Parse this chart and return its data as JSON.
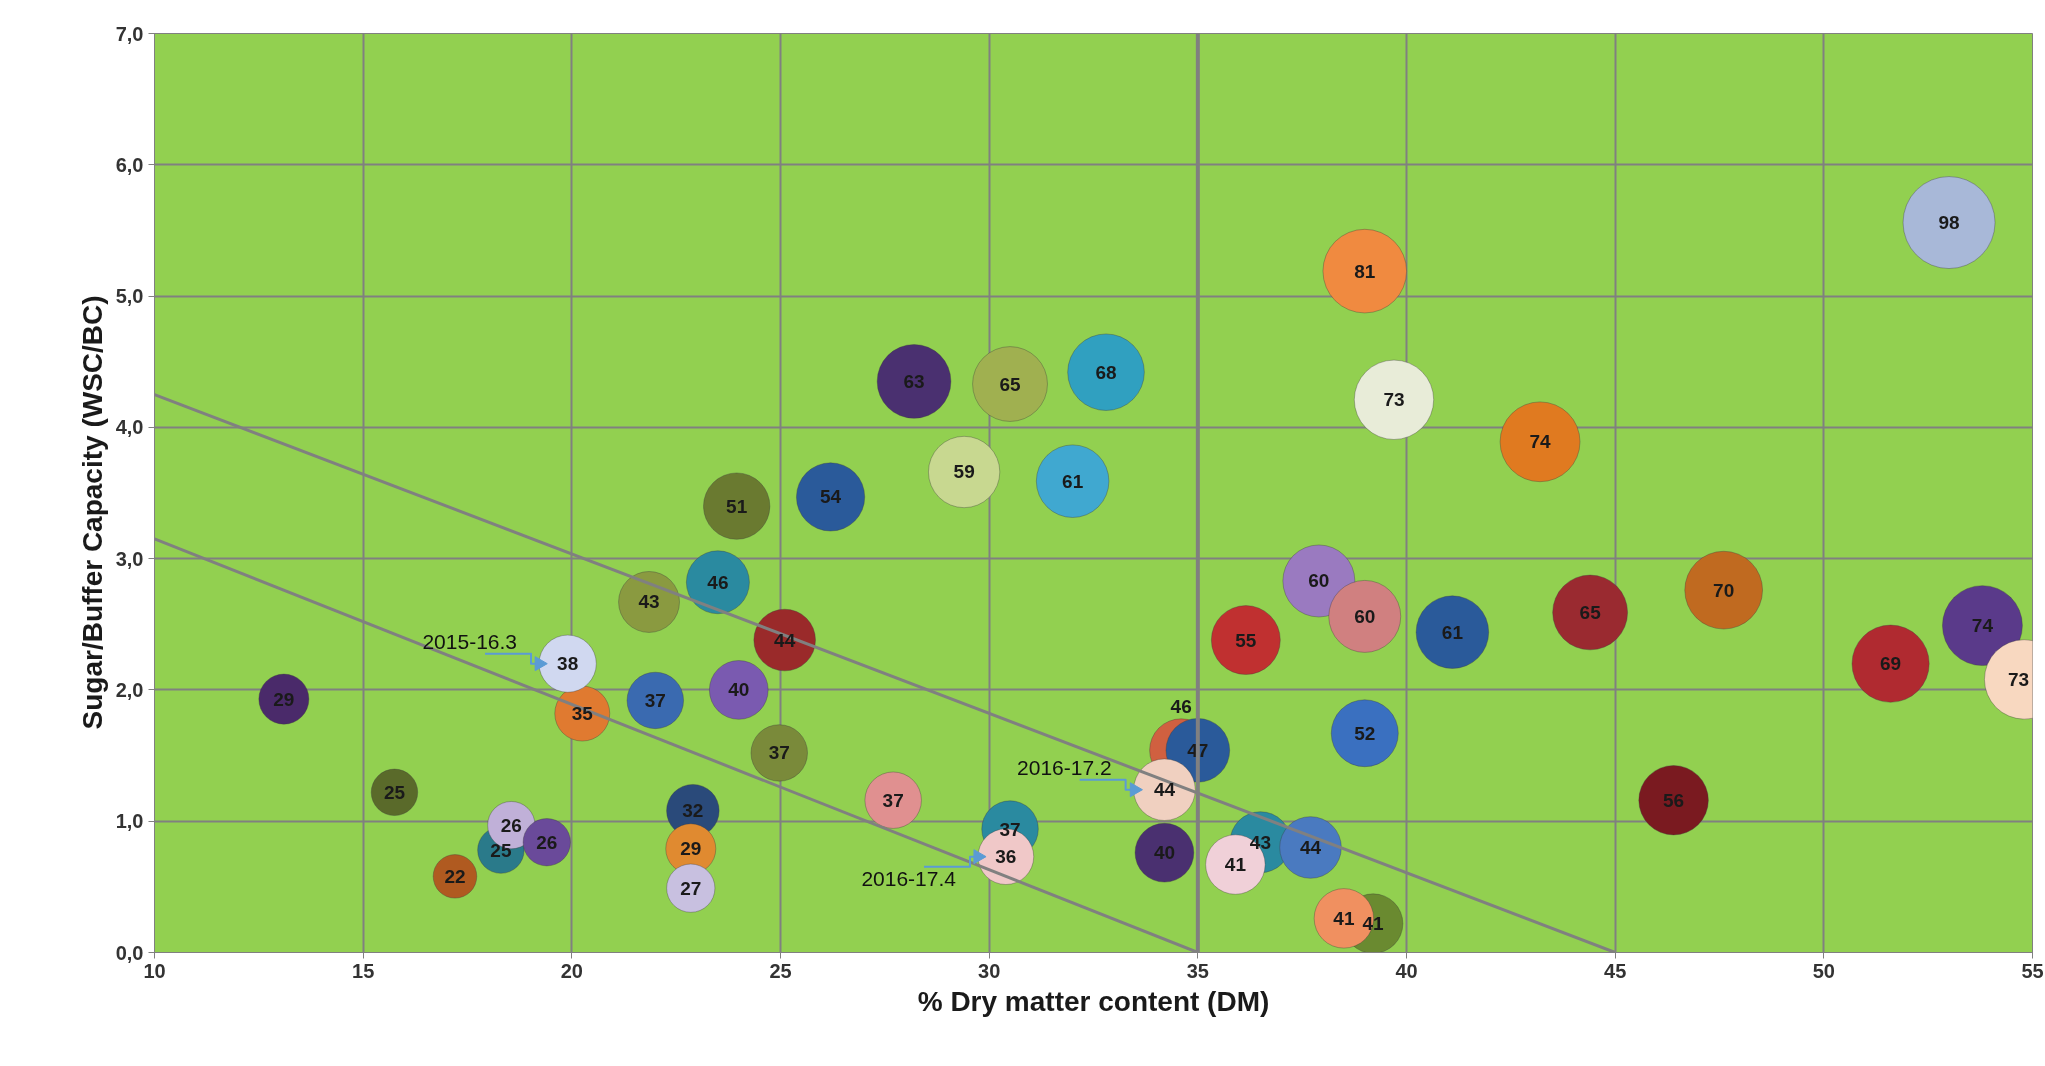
{
  "chart_data": {
    "type": "bubble",
    "xlabel": "% Dry matter content (DM)",
    "ylabel": "Sugar/Buffer Capacity      (WSC/BC)",
    "xlim": [
      10,
      55
    ],
    "xticks": [
      10,
      15,
      20,
      25,
      30,
      35,
      40,
      45,
      50,
      55
    ],
    "ylim": [
      0,
      7
    ],
    "yticks": [
      {
        "value": 0,
        "label": "0,0"
      },
      {
        "value": 1,
        "label": "1,0"
      },
      {
        "value": 2,
        "label": "2,0"
      },
      {
        "value": 3,
        "label": "3,0"
      },
      {
        "value": 4,
        "label": "4,0"
      },
      {
        "value": 5,
        "label": "5,0"
      },
      {
        "value": 6,
        "label": "6,0"
      },
      {
        "value": 7,
        "label": "7,0"
      }
    ],
    "grid": true,
    "ref_lines": [
      {
        "axis": "x",
        "value": 35,
        "label": null,
        "color": "#808080"
      }
    ],
    "annotations": [
      {
        "text": "2015-16.3",
        "x": 19.9,
        "y": 2.2
      },
      {
        "text": "2016-17.2",
        "x": 34.2,
        "y": 1.24
      },
      {
        "text": "2016-17.4",
        "x": 30.4,
        "y": 0.73
      }
    ],
    "series": [
      {
        "value_labels": [
          "29",
          "25",
          "25",
          "26",
          "26",
          "22",
          "35",
          "38",
          "43",
          "37",
          "32",
          "29",
          "27",
          "51",
          "46",
          "40",
          "44",
          "37",
          "54",
          "63",
          "65",
          "68",
          "59",
          "61",
          "37",
          "37",
          "36",
          "46",
          "47",
          "44",
          "40",
          "43",
          "41",
          "44",
          "41",
          "41",
          "55",
          "60",
          "60",
          "61",
          "52",
          "81",
          "73",
          "74",
          "65",
          "70",
          "56",
          "98",
          "69",
          "74",
          "73"
        ],
        "x": [
          13.1,
          15.75,
          18.3,
          18.55,
          19.4,
          17.2,
          20.25,
          19.9,
          21.85,
          22.0,
          22.9,
          22.85,
          22.85,
          23.95,
          23.5,
          24.0,
          25.1,
          24.97,
          26.2,
          28.2,
          30.5,
          32.8,
          29.4,
          32.0,
          27.7,
          30.5,
          30.4,
          34.6,
          35.0,
          34.2,
          34.2,
          36.5,
          35.9,
          37.7,
          39.2,
          38.5,
          36.15,
          37.9,
          39.0,
          41.1,
          39.0,
          39.0,
          39.7,
          43.2,
          44.4,
          47.6,
          46.4,
          53.0,
          51.6,
          53.8,
          54.8
        ],
        "values": [
          1.93,
          1.22,
          0.78,
          0.97,
          0.84,
          0.58,
          1.82,
          2.2,
          2.67,
          1.92,
          1.08,
          0.79,
          0.49,
          3.4,
          2.82,
          2.0,
          2.38,
          1.52,
          3.47,
          4.35,
          4.33,
          4.42,
          3.66,
          3.59,
          1.16,
          0.94,
          0.73,
          1.54,
          1.54,
          1.24,
          0.76,
          0.84,
          0.67,
          0.8,
          0.22,
          0.26,
          2.38,
          2.83,
          2.56,
          2.44,
          1.67,
          5.19,
          4.21,
          3.89,
          2.59,
          2.76,
          1.16,
          5.56,
          2.2,
          2.49,
          2.08
        ],
        "sizes": [
          29,
          25,
          25,
          26,
          26,
          22,
          35,
          38,
          43,
          37,
          32,
          29,
          27,
          51,
          46,
          40,
          44,
          37,
          54,
          63,
          65,
          68,
          59,
          61,
          37,
          37,
          36,
          46,
          47,
          44,
          40,
          43,
          41,
          44,
          41,
          41,
          55,
          60,
          60,
          61,
          52,
          81,
          73,
          74,
          65,
          70,
          56,
          98,
          69,
          74,
          73
        ],
        "colors": [
          "#4a2a6a",
          "#5a6a2a",
          "#2a7a8a",
          "#c0b0d8",
          "#6a4a9a",
          "#b05a20",
          "#e07a30",
          "#d0d8f0",
          "#8a9a40",
          "#3a6ab0",
          "#2a4a7a",
          "#e08a30",
          "#c8c0e0",
          "#6a7a30",
          "#2a8aa0",
          "#7a5ab0",
          "#9a2a2a",
          "#7a8a3a",
          "#2a5a9a",
          "#4a3070",
          "#a0b050",
          "#30a0c0",
          "#c8d890",
          "#40a8d0",
          "#e09090",
          "#2a8aa0",
          "#f0c8c8",
          "#d06040",
          "#2a5a9a",
          "#f0d0c0",
          "#4a3070",
          "#2a8aa0",
          "#f0d0d8",
          "#4a7ac0",
          "#6a8a30",
          "#f09060",
          "#c03030",
          "#9a7ac0",
          "#d08080",
          "#2a5a9a",
          "#3a70c0",
          "#f08a40",
          "#e8ecd8",
          "#e07a20",
          "#9a2a30",
          "#c06a20",
          "#7a1a20",
          "#a8b8d8",
          "#b02a30",
          "#5a3a8a",
          "#f8d8c0"
        ]
      },
      {
        "type": "line",
        "x": [
          10,
          45
        ],
        "values": [
          4.25,
          0
        ],
        "color": "#808080"
      },
      {
        "type": "line",
        "x": [
          10,
          35
        ],
        "values": [
          3.15,
          0
        ],
        "color": "#808080"
      }
    ]
  }
}
